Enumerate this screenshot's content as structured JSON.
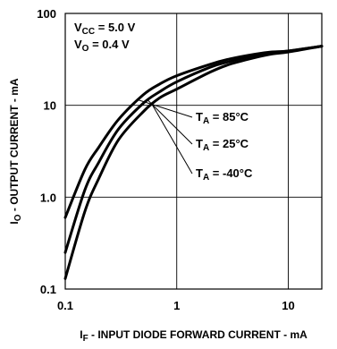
{
  "chart_data": {
    "type": "line",
    "x_scale": "log",
    "y_scale": "log",
    "xlim": [
      0.1,
      20
    ],
    "ylim": [
      0.1,
      100
    ],
    "grid": true,
    "x_ticks": [
      {
        "value": 0.1,
        "label": "0.1"
      },
      {
        "value": 1,
        "label": "1"
      },
      {
        "value": 10,
        "label": "10"
      }
    ],
    "y_ticks": [
      {
        "value": 100,
        "label": "100"
      },
      {
        "value": 10,
        "label": "10"
      },
      {
        "value": 1,
        "label": "1.0"
      },
      {
        "value": 0.1,
        "label": "0.1"
      }
    ],
    "xlabel": {
      "main": "I",
      "sub": "F",
      "rest": " - INPUT DIODE FORWARD CURRENT - mA"
    },
    "ylabel": {
      "main": "I",
      "sub": "O",
      "rest": " - OUTPUT CURRENT - mA"
    },
    "conditions": [
      {
        "main": "V",
        "sub": "CC",
        "rest": " = 5.0 V"
      },
      {
        "main": "V",
        "sub": "O",
        "rest": " = 0.4 V"
      }
    ],
    "series": [
      {
        "name_main": "T",
        "name_sub": "A",
        "name_rest": " = 85°C",
        "x": [
          0.1,
          0.15,
          0.2,
          0.3,
          0.5,
          0.7,
          1,
          2,
          3,
          5,
          7,
          10,
          20
        ],
        "y": [
          0.6,
          2.0,
          3.5,
          7.0,
          13,
          17,
          21,
          28,
          32,
          36,
          38,
          39,
          44
        ]
      },
      {
        "name_main": "T",
        "name_sub": "A",
        "name_rest": " = 25°C",
        "x": [
          0.1,
          0.15,
          0.2,
          0.3,
          0.5,
          0.7,
          1,
          2,
          3,
          5,
          7,
          10,
          20
        ],
        "y": [
          0.25,
          1.2,
          2.4,
          5.5,
          10.5,
          14,
          18,
          26,
          30,
          35,
          37,
          39,
          44
        ]
      },
      {
        "name_main": "T",
        "name_sub": "A",
        "name_rest": " = -40°C",
        "x": [
          0.1,
          0.15,
          0.2,
          0.3,
          0.5,
          0.7,
          1,
          2,
          3,
          5,
          7,
          10,
          20
        ],
        "y": [
          0.13,
          0.7,
          1.6,
          4.2,
          8.5,
          12,
          15,
          23,
          28,
          33,
          36,
          38,
          44
        ]
      }
    ]
  }
}
